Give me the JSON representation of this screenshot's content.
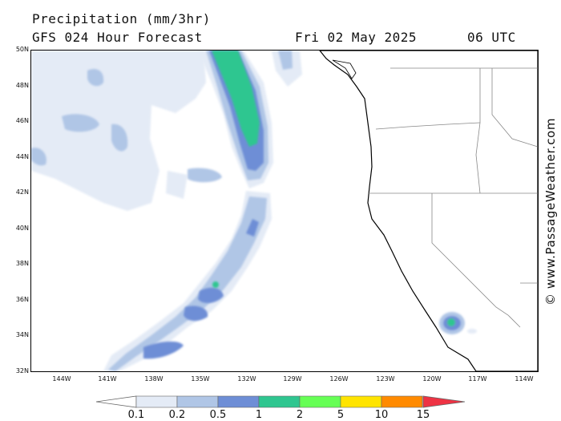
{
  "header": {
    "title": "Precipitation (mm/3hr)",
    "model_line": "GFS 024 Hour Forecast",
    "valid_date": "Fri 02 May 2025",
    "valid_time": "06 UTC"
  },
  "copyright": "© www.PassageWeather.com",
  "axes": {
    "lat_labels": [
      "50N",
      "48N",
      "46N",
      "44N",
      "42N",
      "40N",
      "38N",
      "36N",
      "34N",
      "32N"
    ],
    "lon_labels": [
      "144W",
      "141W",
      "138W",
      "135W",
      "132W",
      "129W",
      "126W",
      "123W",
      "120W",
      "117W",
      "114W"
    ],
    "lat_range": [
      32,
      50
    ],
    "lon_range": [
      -146,
      -113
    ]
  },
  "legend": {
    "units": "mm/3hr",
    "thresholds": [
      "0.1",
      "0.2",
      "0.5",
      "1",
      "2",
      "5",
      "10",
      "15"
    ],
    "colors": [
      "#e4ebf6",
      "#b0c6e6",
      "#6e8ed6",
      "#2fc690",
      "#66ff55",
      "#ffe400",
      "#ff8a00",
      "#ee3344"
    ]
  },
  "precip_areas": [
    {
      "name": "northwest-ocean-light-field",
      "level": "0.1-0.2"
    },
    {
      "name": "northwest-ocean-patches",
      "level": "0.2-0.5"
    },
    {
      "name": "frontal-band-north",
      "level": "1-2"
    },
    {
      "name": "frontal-band-south",
      "level": "0.5-1"
    },
    {
      "name": "core-37N-133W",
      "level": "1-2"
    },
    {
      "name": "southern-california-cell",
      "level": "1-2"
    }
  ]
}
